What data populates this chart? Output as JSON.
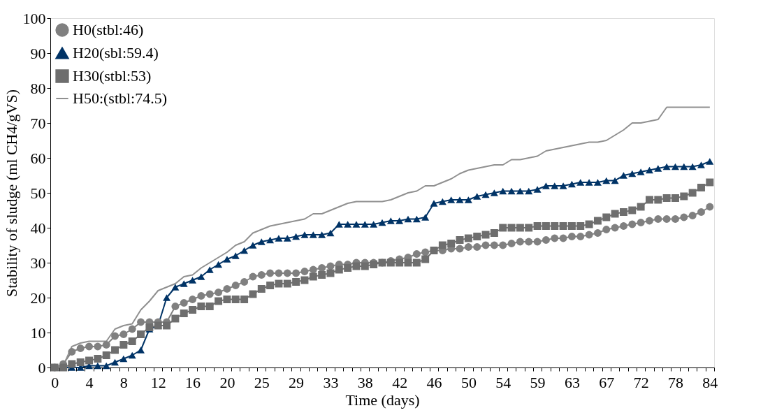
{
  "chart_data": {
    "type": "line",
    "xlabel": "Time (days)",
    "ylabel": "Stability of sludge (ml CH4/gVS)",
    "categories": [
      "0",
      null,
      null,
      null,
      "4",
      null,
      null,
      null,
      "8",
      null,
      null,
      null,
      "12",
      null,
      null,
      null,
      "16",
      null,
      null,
      null,
      "20",
      null,
      null,
      null,
      "25",
      null,
      null,
      null,
      "29",
      null,
      null,
      null,
      "33",
      null,
      null,
      null,
      "38",
      null,
      null,
      null,
      "42",
      null,
      null,
      null,
      "46",
      null,
      null,
      null,
      "50",
      null,
      null,
      null,
      "54",
      null,
      null,
      null,
      "59",
      null,
      null,
      null,
      "63",
      null,
      null,
      null,
      "67",
      null,
      null,
      null,
      "72",
      null,
      null,
      null,
      "78",
      null,
      null,
      null,
      "84"
    ],
    "ylim": [
      0,
      100
    ],
    "yticks": [
      0,
      10,
      20,
      30,
      40,
      50,
      60,
      70,
      80,
      90,
      100
    ],
    "grid": false,
    "legend": "top left",
    "series": [
      {
        "name": "H0(stbl:46)",
        "color": "#808080",
        "marker": "circle",
        "values": [
          0,
          1,
          4.5,
          5.5,
          6,
          6,
          6.5,
          9,
          9.5,
          11,
          13,
          13,
          13,
          13,
          17.5,
          18.5,
          19.5,
          20.5,
          21,
          21.5,
          22.5,
          23.5,
          24.5,
          26,
          26.5,
          27,
          27,
          27,
          27,
          27.5,
          28,
          28.5,
          29,
          29.5,
          29.5,
          30,
          30,
          30,
          30,
          30.5,
          31,
          31.5,
          32.5,
          33,
          33.5,
          33.5,
          34,
          34,
          34.5,
          34.5,
          35,
          35,
          35,
          35.5,
          36,
          36,
          36,
          36.5,
          37,
          37,
          37.5,
          37.5,
          38,
          38.5,
          39.5,
          40,
          40.5,
          41,
          41.5,
          42,
          42.5,
          42.5,
          42.5,
          43,
          43.5,
          44.5,
          46
        ]
      },
      {
        "name": "H20(sbl:59.4)",
        "color": "#003366",
        "marker": "triangle",
        "values": [
          0,
          0,
          0,
          0,
          0.5,
          0.5,
          0.5,
          1.5,
          2.5,
          3.5,
          5,
          11,
          12,
          20,
          23,
          24,
          25,
          26,
          28,
          29.5,
          31,
          32,
          33.5,
          35,
          36,
          36.5,
          37,
          37,
          37.5,
          38,
          38,
          38,
          38.5,
          41,
          41,
          41,
          41,
          41,
          41.5,
          42,
          42,
          42.5,
          42.5,
          43,
          47,
          47.5,
          48,
          48,
          48,
          49,
          49.5,
          50,
          50.5,
          50.5,
          50.5,
          50.5,
          51,
          52,
          52,
          52,
          52.5,
          53,
          53,
          53,
          53.5,
          53.5,
          55,
          55.5,
          56,
          56.5,
          57,
          57.5,
          57.5,
          57.5,
          57.5,
          58,
          59
        ]
      },
      {
        "name": "H30(stbl:53)",
        "color": "#6e6e6e",
        "marker": "square",
        "values": [
          0,
          0,
          1,
          1.5,
          2,
          2.5,
          3.5,
          5,
          6.5,
          7.5,
          9.5,
          11.5,
          12,
          12,
          14,
          15.5,
          16.5,
          17.5,
          17.5,
          19,
          19.5,
          19.5,
          19.5,
          21,
          22.5,
          23.5,
          24,
          24,
          24.5,
          25,
          26,
          26.5,
          27,
          28,
          28.5,
          29,
          29,
          29.5,
          30,
          30,
          30,
          30,
          30,
          31,
          33.5,
          35,
          35.5,
          36.5,
          37,
          37.5,
          38,
          38.5,
          40,
          40,
          40,
          40,
          40.5,
          40.5,
          40.5,
          40.5,
          40.5,
          40.5,
          41,
          42,
          43,
          44,
          44.5,
          45,
          46,
          48,
          48,
          48.5,
          48.5,
          49,
          50,
          51.5,
          53
        ]
      },
      {
        "name": "H50:(stbl:74.5)",
        "color": "#909090",
        "marker": "none",
        "values": [
          0,
          0.5,
          6,
          7,
          7.5,
          7.5,
          7.5,
          11,
          12,
          12.5,
          16.5,
          19,
          22,
          23,
          24,
          26,
          26.5,
          28.5,
          30,
          31.5,
          33,
          35,
          36,
          38.5,
          39.5,
          40.5,
          41,
          41.5,
          42,
          42.5,
          44,
          44,
          45,
          46,
          47,
          47.5,
          47.5,
          47.5,
          47.5,
          48,
          49,
          50,
          50.5,
          52,
          52,
          53,
          54,
          55.5,
          56.5,
          57,
          57.5,
          58,
          58,
          59.5,
          59.5,
          60,
          60.5,
          62,
          62.5,
          63,
          63.5,
          64,
          64.5,
          64.5,
          65,
          66.5,
          68,
          70,
          70,
          70.5,
          71,
          74.5,
          74.5,
          74.5,
          74.5,
          74.5,
          74.5
        ]
      }
    ]
  }
}
